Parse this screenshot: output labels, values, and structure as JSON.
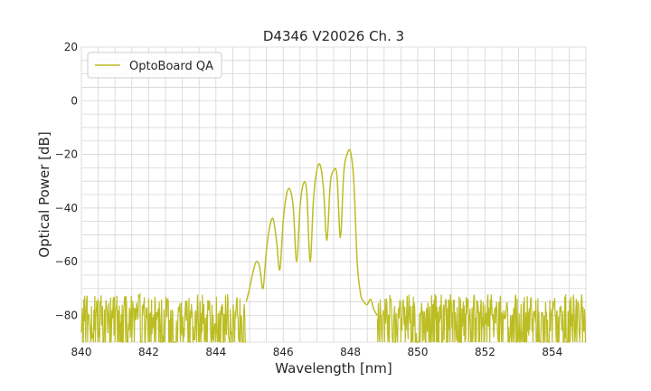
{
  "chart_data": {
    "type": "line",
    "title": "D4346 V20026 Ch. 3",
    "xlabel": "Wavelength [nm]",
    "ylabel": "Optical Power [dB]",
    "xlim": [
      840,
      855
    ],
    "ylim": [
      -90,
      20
    ],
    "xticks": [
      840,
      842,
      844,
      846,
      848,
      850,
      852,
      854
    ],
    "yticks": [
      -80,
      -60,
      -40,
      -20,
      0,
      20
    ],
    "x_minor_step": 0.5,
    "y_minor_step": 5,
    "grid": true,
    "legend": {
      "position": "top-left",
      "entries": [
        "OptoBoard QA"
      ]
    },
    "series": [
      {
        "name": "OptoBoard QA",
        "color": "#bcbd22",
        "noise_floor": {
          "x_ranges": [
            [
              840.0,
              844.9
            ],
            [
              848.8,
              855.0
            ]
          ],
          "min": -90,
          "max": -72
        },
        "x": [
          844.9,
          845.0,
          845.1,
          845.2,
          845.3,
          845.4,
          845.5,
          845.6,
          845.7,
          845.8,
          845.9,
          846.0,
          846.1,
          846.2,
          846.3,
          846.4,
          846.5,
          846.6,
          846.7,
          846.8,
          846.9,
          847.0,
          847.1,
          847.2,
          847.3,
          847.4,
          847.5,
          847.6,
          847.7,
          847.8,
          847.9,
          848.0,
          848.1,
          848.2,
          848.3,
          848.4,
          848.5,
          848.6,
          848.7,
          848.8
        ],
        "y": [
          -75,
          -70,
          -64,
          -60,
          -62,
          -70,
          -56,
          -47,
          -44,
          -52,
          -63,
          -45,
          -35,
          -33,
          -40,
          -60,
          -40,
          -31,
          -34,
          -60,
          -37,
          -26,
          -24,
          -33,
          -52,
          -31,
          -26,
          -28,
          -51,
          -27,
          -20,
          -19,
          -30,
          -60,
          -72,
          -75,
          -76,
          -74,
          -78,
          -80
        ]
      }
    ]
  }
}
